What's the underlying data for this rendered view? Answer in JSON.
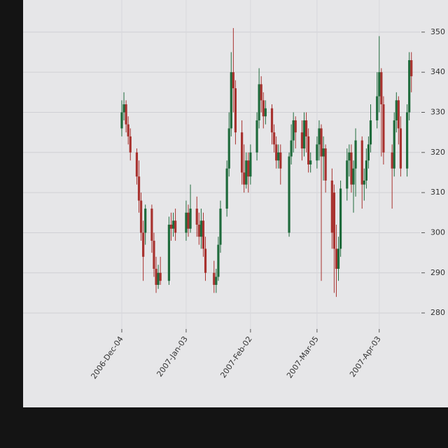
{
  "chart_data": {
    "type": "candlestick",
    "x": [
      "2006-12-04",
      "2006-12-05",
      "2006-12-06",
      "2006-12-07",
      "2006-12-08",
      "2006-12-11",
      "2006-12-12",
      "2006-12-13",
      "2006-12-14",
      "2006-12-15",
      "2006-12-18",
      "2006-12-19",
      "2006-12-20",
      "2006-12-21",
      "2006-12-22",
      "2006-12-26",
      "2006-12-27",
      "2006-12-28",
      "2006-12-29",
      "2007-01-03",
      "2007-01-04",
      "2007-01-05",
      "2007-01-08",
      "2007-01-09",
      "2007-01-10",
      "2007-01-11",
      "2007-01-12",
      "2007-01-16",
      "2007-01-17",
      "2007-01-18",
      "2007-01-19",
      "2007-01-22",
      "2007-01-23",
      "2007-01-24",
      "2007-01-25",
      "2007-01-26",
      "2007-01-29",
      "2007-01-30",
      "2007-01-31",
      "2007-02-01",
      "2007-02-02",
      "2007-02-05",
      "2007-02-06",
      "2007-02-07",
      "2007-02-08",
      "2007-02-09",
      "2007-02-12",
      "2007-02-13",
      "2007-02-14",
      "2007-02-15",
      "2007-02-16",
      "2007-02-20",
      "2007-02-21",
      "2007-02-22",
      "2007-02-23",
      "2007-02-26",
      "2007-02-27",
      "2007-02-28",
      "2007-03-01",
      "2007-03-02",
      "2007-03-05",
      "2007-03-06",
      "2007-03-07",
      "2007-03-08",
      "2007-03-09",
      "2007-03-12",
      "2007-03-13",
      "2007-03-14",
      "2007-03-15",
      "2007-03-16",
      "2007-03-19",
      "2007-03-20",
      "2007-03-21",
      "2007-03-22",
      "2007-03-23",
      "2007-03-26",
      "2007-03-27",
      "2007-03-28",
      "2007-03-29",
      "2007-03-30",
      "2007-04-02",
      "2007-04-03",
      "2007-04-04",
      "2007-04-05",
      "2007-04-09",
      "2007-04-10",
      "2007-04-11",
      "2007-04-12",
      "2007-04-13",
      "2007-04-16",
      "2007-04-17",
      "2007-04-18"
    ],
    "open": [
      326,
      330,
      332,
      327,
      324,
      320,
      314,
      308,
      300,
      300,
      306,
      298,
      291,
      287,
      290,
      288,
      302,
      301,
      303,
      300,
      305,
      301,
      306,
      302,
      299,
      303,
      296,
      290,
      287,
      289,
      297,
      306,
      316,
      326,
      340,
      336,
      325,
      315,
      312,
      318,
      314,
      320,
      328,
      337,
      333,
      329,
      331,
      325,
      322,
      318,
      320,
      300,
      319,
      323,
      328,
      325,
      321,
      328,
      324,
      317,
      318,
      322,
      326,
      319,
      321,
      313,
      310,
      296,
      291,
      296,
      311,
      318,
      320,
      312,
      316,
      323,
      312,
      313,
      318,
      322,
      328,
      334,
      340,
      332,
      320,
      316,
      328,
      333,
      326,
      316,
      330,
      343
    ],
    "high": [
      333,
      335,
      333,
      329,
      326,
      321,
      318,
      310,
      303,
      307,
      307,
      300,
      294,
      292,
      294,
      304,
      305,
      305,
      306,
      308,
      307,
      312,
      309,
      305,
      306,
      305,
      299,
      293,
      291,
      299,
      308,
      318,
      330,
      345,
      351,
      338,
      328,
      322,
      320,
      320,
      322,
      330,
      341,
      339,
      335,
      333,
      332,
      327,
      324,
      322,
      322,
      320,
      327,
      330,
      329,
      328,
      330,
      330,
      326,
      320,
      324,
      328,
      327,
      324,
      322,
      316,
      312,
      302,
      299,
      313,
      321,
      322,
      322,
      318,
      326,
      324,
      316,
      321,
      324,
      332,
      340,
      349,
      341,
      334,
      322,
      330,
      335,
      334,
      329,
      332,
      345,
      345
    ],
    "low": [
      324,
      328,
      325,
      322,
      318,
      312,
      305,
      298,
      288,
      297,
      295,
      289,
      285,
      286,
      287,
      287,
      298,
      299,
      298,
      298,
      299,
      300,
      299,
      297,
      296,
      294,
      288,
      285,
      285,
      288,
      295,
      304,
      314,
      324,
      330,
      322,
      312,
      310,
      311,
      310,
      312,
      318,
      326,
      330,
      326,
      327,
      322,
      320,
      316,
      316,
      312,
      299,
      317,
      320,
      321,
      318,
      319,
      320,
      315,
      315,
      316,
      318,
      288,
      313,
      310,
      296,
      285,
      284,
      288,
      294,
      308,
      314,
      310,
      305,
      309,
      306,
      308,
      311,
      316,
      320,
      326,
      330,
      319,
      317,
      306,
      314,
      325,
      322,
      314,
      314,
      328,
      335
    ],
    "close": [
      330,
      332,
      327,
      324,
      320,
      314,
      308,
      300,
      294,
      306,
      298,
      291,
      287,
      290,
      288,
      302,
      301,
      303,
      300,
      305,
      301,
      306,
      302,
      299,
      303,
      296,
      290,
      287,
      289,
      297,
      306,
      316,
      326,
      340,
      336,
      325,
      315,
      312,
      318,
      314,
      320,
      328,
      337,
      333,
      329,
      331,
      325,
      322,
      318,
      320,
      316,
      319,
      323,
      328,
      325,
      321,
      328,
      324,
      317,
      318,
      322,
      326,
      319,
      321,
      313,
      300,
      296,
      291,
      296,
      311,
      318,
      320,
      312,
      316,
      323,
      312,
      313,
      318,
      322,
      328,
      334,
      340,
      332,
      320,
      316,
      328,
      333,
      326,
      316,
      330,
      343,
      339
    ],
    "up_color": "#1f6b3c",
    "down_color": "#a8322f",
    "xlim": [
      "2006-10-19",
      "2007-04-22"
    ],
    "xticks": [
      {
        "value": "2006-12-04",
        "label": "2006-Dec-04"
      },
      {
        "value": "2007-01-03",
        "label": "2007-Jan-03"
      },
      {
        "value": "2007-02-02",
        "label": "2007-Feb-02"
      },
      {
        "value": "2007-03-05",
        "label": "2007-Mar-05"
      },
      {
        "value": "2007-04-03",
        "label": "2007-Apr-03"
      }
    ],
    "ylim": [
      276,
      358
    ],
    "yticks": [
      280,
      290,
      300,
      310,
      320,
      330,
      340,
      350
    ],
    "grid": true
  }
}
